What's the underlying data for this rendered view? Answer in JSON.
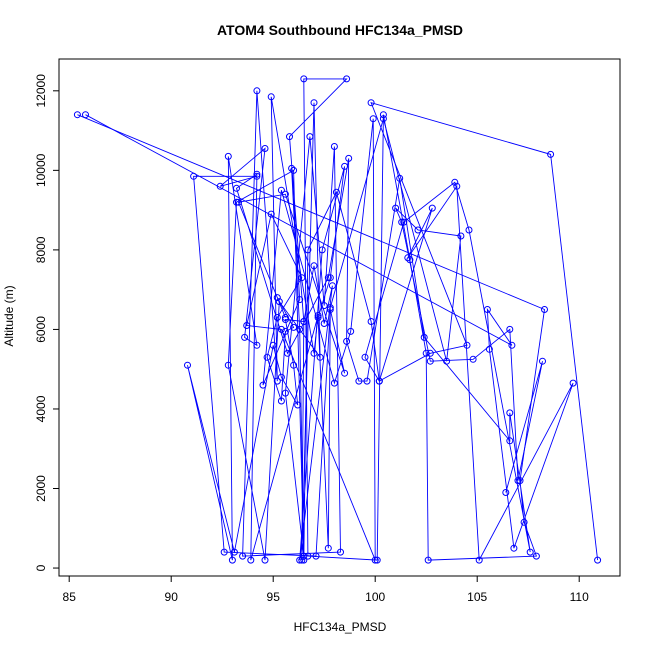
{
  "chart_data": {
    "type": "line",
    "title": "ATOM4 Southbound HFC134a_PMSD",
    "xlabel": "HFC134a_PMSD",
    "ylabel": "Altitude (m)",
    "xlim": [
      84.5,
      112.0
    ],
    "ylim": [
      -200,
      12800
    ],
    "xticks": [
      85,
      90,
      95,
      100,
      105,
      110
    ],
    "yticks": [
      0,
      2000,
      4000,
      6000,
      8000,
      10000,
      12000
    ],
    "grid": false,
    "legend": "none",
    "colors": {
      "series": "#0000ff",
      "axes": "#000000",
      "background": "#ffffff"
    },
    "series": [
      {
        "markers": "open-circle",
        "points": [
          [
            85.4,
            11400
          ],
          [
            108.3,
            6500
          ],
          [
            107.1,
            2200
          ],
          [
            107.3,
            1150
          ],
          [
            107.9,
            300
          ],
          [
            102.6,
            200
          ],
          [
            102.5,
            5400
          ],
          [
            101.7,
            7750
          ],
          [
            100.4,
            11400
          ],
          [
            100.1,
            200
          ],
          [
            96.7,
            300
          ],
          [
            96.5,
            12300
          ],
          [
            98.6,
            12300
          ],
          [
            95.8,
            10850
          ],
          [
            96.5,
            6200
          ],
          [
            96.4,
            200
          ],
          [
            97.0,
            11700
          ],
          [
            97.3,
            5300
          ],
          [
            95.3,
            6700
          ],
          [
            94.6,
            200
          ],
          [
            92.8,
            5100
          ],
          [
            93.2,
            9200
          ],
          [
            96.0,
            10000
          ],
          [
            96.5,
            300
          ],
          [
            95.6,
            4400
          ],
          [
            96.8,
            10850
          ],
          [
            97.5,
            6600
          ],
          [
            98.0,
            10600
          ],
          [
            98.3,
            400
          ],
          [
            93.5,
            300
          ],
          [
            94.2,
            12000
          ],
          [
            95.2,
            4700
          ],
          [
            94.9,
            11850
          ],
          [
            97.0,
            5400
          ],
          [
            97.2,
            6350
          ],
          [
            93.9,
            200
          ],
          [
            94.2,
            9900
          ],
          [
            93.2,
            9550
          ],
          [
            95.7,
            5400
          ],
          [
            97.7,
            7300
          ],
          [
            98.7,
            10300
          ],
          [
            98.6,
            5700
          ],
          [
            99.2,
            4700
          ],
          [
            99.6,
            4700
          ],
          [
            101.2,
            9800
          ],
          [
            102.4,
            5800
          ],
          [
            106.6,
            3200
          ],
          [
            106.6,
            3900
          ],
          [
            107.6,
            400
          ],
          [
            104.6,
            8500
          ],
          [
            103.9,
            9700
          ],
          [
            101.4,
            8700
          ],
          [
            99.5,
            5300
          ],
          [
            100.2,
            4700
          ],
          [
            102.7,
            5400
          ],
          [
            104.5,
            5600
          ],
          [
            99.8,
            11700
          ],
          [
            108.6,
            10400
          ],
          [
            110.9,
            200
          ]
        ]
      },
      {
        "markers": "open-circle",
        "points": [
          [
            85.8,
            11400
          ],
          [
            106.7,
            5600
          ],
          [
            105.5,
            6500
          ],
          [
            105.6,
            5500
          ],
          [
            106.8,
            500
          ],
          [
            109.7,
            4650
          ],
          [
            105.1,
            200
          ],
          [
            104.0,
            9600
          ],
          [
            101.6,
            7800
          ],
          [
            102.8,
            9050
          ],
          [
            100.2,
            4700
          ],
          [
            99.8,
            6200
          ],
          [
            98.1,
            9450
          ],
          [
            96.7,
            8000
          ],
          [
            96.5,
            200
          ],
          [
            96.3,
            6000
          ],
          [
            95.9,
            10050
          ],
          [
            96.3,
            6750
          ],
          [
            94.5,
            4600
          ],
          [
            95.4,
            9500
          ],
          [
            98.0,
            4650
          ],
          [
            98.8,
            5950
          ],
          [
            99.9,
            11300
          ],
          [
            100.0,
            200
          ],
          [
            95.4,
            6000
          ],
          [
            93.7,
            6100
          ],
          [
            94.9,
            8900
          ],
          [
            96.4,
            7300
          ],
          [
            95.2,
            6300
          ],
          [
            94.7,
            5300
          ],
          [
            95.4,
            4200
          ],
          [
            95.6,
            5950
          ],
          [
            96.0,
            6050
          ],
          [
            95.2,
            6800
          ],
          [
            95.6,
            6300
          ],
          [
            93.3,
            9200
          ],
          [
            95.6,
            9400
          ],
          [
            98.5,
            4900
          ],
          [
            97.8,
            6500
          ],
          [
            97.1,
            300
          ],
          [
            92.6,
            400
          ],
          [
            91.1,
            9850
          ],
          [
            94.2,
            9850
          ],
          [
            92.4,
            9600
          ],
          [
            94.6,
            10550
          ],
          [
            93.6,
            5800
          ],
          [
            94.2,
            5600
          ],
          [
            92.8,
            10350
          ],
          [
            93.0,
            200
          ],
          [
            90.8,
            5100
          ],
          [
            93.1,
            400
          ],
          [
            95.0,
            5600
          ],
          [
            95.4,
            4800
          ],
          [
            96.2,
            4100
          ],
          [
            96.0,
            5100
          ],
          [
            95.6,
            6250
          ],
          [
            96.5,
            6200
          ],
          [
            97.0,
            7600
          ],
          [
            97.5,
            6150
          ],
          [
            97.9,
            7100
          ],
          [
            96.3,
            200
          ],
          [
            97.4,
            8000
          ],
          [
            98.5,
            10100
          ],
          [
            97.8,
            7300
          ],
          [
            97.2,
            6300
          ],
          [
            97.7,
            500
          ],
          [
            97.8,
            6550
          ],
          [
            100.4,
            11300
          ],
          [
            103.5,
            5200
          ],
          [
            104.2,
            8350
          ],
          [
            102.1,
            8500
          ],
          [
            101.0,
            9050
          ],
          [
            101.3,
            8700
          ],
          [
            102.7,
            5200
          ],
          [
            104.8,
            5250
          ],
          [
            106.6,
            6000
          ],
          [
            107.0,
            2200
          ],
          [
            108.2,
            5200
          ],
          [
            106.4,
            1900
          ]
        ]
      }
    ]
  }
}
